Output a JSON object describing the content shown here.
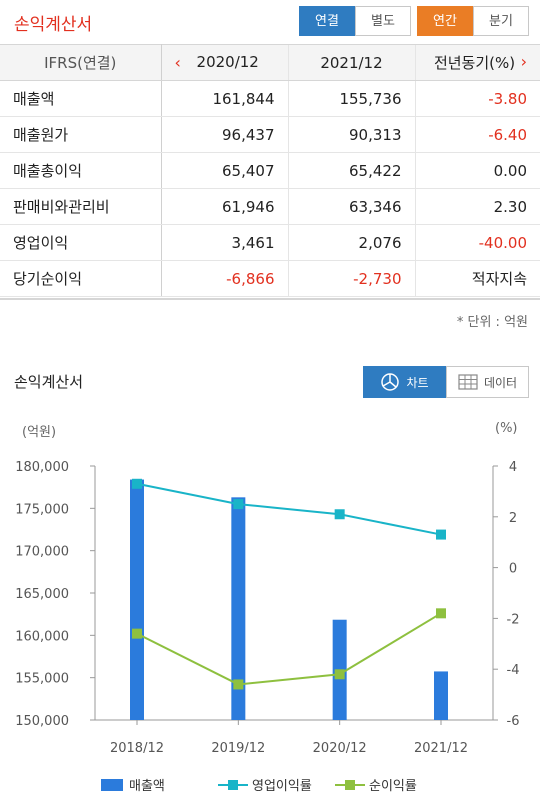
{
  "header": {
    "title": "손익계산서",
    "consolidation_tabs": [
      {
        "label": "연결",
        "active": true
      },
      {
        "label": "별도",
        "active": false
      }
    ],
    "period_tabs": [
      {
        "label": "연간",
        "active": true
      },
      {
        "label": "분기",
        "active": false
      }
    ]
  },
  "table": {
    "basis_label": "IFRS(연결)",
    "prev_arrow": "‹",
    "next_arrow": "›",
    "columns": [
      "2020/12",
      "2021/12",
      "전년동기(%)"
    ],
    "rows": [
      {
        "label": "매출액",
        "v2020": "161,844",
        "v2021": "155,736",
        "yoy": "-3.80"
      },
      {
        "label": "매출원가",
        "v2020": "96,437",
        "v2021": "90,313",
        "yoy": "-6.40"
      },
      {
        "label": "매출총이익",
        "v2020": "65,407",
        "v2021": "65,422",
        "yoy": "0.00"
      },
      {
        "label": "판매비와관리비",
        "v2020": "61,946",
        "v2021": "63,346",
        "yoy": "2.30"
      },
      {
        "label": "영업이익",
        "v2020": "3,461",
        "v2021": "2,076",
        "yoy": "-40.00"
      },
      {
        "label": "당기순이익",
        "v2020": "-6,866",
        "v2021": "-2,730",
        "yoy": "적자지속"
      }
    ],
    "unit_note": "* 단위 : 억원"
  },
  "chart_section": {
    "title": "손익계산서",
    "view_tabs": [
      {
        "label": "차트",
        "icon": "pie-chart-icon",
        "active": true
      },
      {
        "label": "데이터",
        "icon": "table-grid-icon",
        "active": false
      }
    ],
    "left_unit": "(억원)",
    "right_unit": "(%)"
  },
  "colors": {
    "accent_red": "#e2301f",
    "blue": "#2f7cc1",
    "orange": "#ea7d25",
    "bar": "#2b7bdc",
    "op_margin": "#19b4c8",
    "net_margin": "#8ec03f",
    "negative": "#e2301f"
  },
  "chart_data": {
    "type": "bar",
    "categories": [
      "2018/12",
      "2019/12",
      "2020/12",
      "2021/12"
    ],
    "series": [
      {
        "name": "매출액",
        "type": "bar",
        "axis": "left",
        "values": [
          178400,
          176300,
          161844,
          155736
        ]
      },
      {
        "name": "영업이익률",
        "type": "line",
        "axis": "right",
        "values": [
          3.3,
          2.5,
          2.1,
          1.3
        ]
      },
      {
        "name": "순이익률",
        "type": "line",
        "axis": "right",
        "values": [
          -2.6,
          -4.6,
          -4.2,
          -1.8
        ]
      }
    ],
    "left_axis": {
      "ylim": [
        150000,
        180000
      ],
      "ticks": [
        "150,000",
        "155,000",
        "160,000",
        "165,000",
        "170,000",
        "175,000",
        "180,000"
      ]
    },
    "right_axis": {
      "ylim": [
        -6,
        4
      ],
      "ticks": [
        "-6",
        "-4",
        "-2",
        "0",
        "2",
        "4"
      ]
    },
    "ylabel": "(억원)",
    "y2label": "(%)",
    "legend_position": "bottom"
  }
}
